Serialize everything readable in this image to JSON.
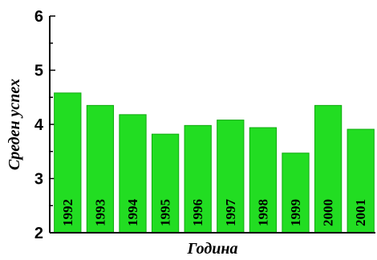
{
  "chart_data": {
    "type": "bar",
    "categories": [
      "1992",
      "1993",
      "1994",
      "1995",
      "1996",
      "1997",
      "1998",
      "1999",
      "2000",
      "2001"
    ],
    "values": [
      4.58,
      4.35,
      4.18,
      3.82,
      3.98,
      4.08,
      3.94,
      3.47,
      4.35,
      3.91
    ],
    "title": "",
    "xlabel": "Година",
    "ylabel": "Среден успех",
    "ylim": [
      2,
      6
    ],
    "yticks": [
      "2",
      "3",
      "4",
      "5",
      "6"
    ],
    "bar_labels_inside": true,
    "grid": false,
    "bar_color": "#22dd22",
    "bar_edge_color": "#11aa11"
  }
}
